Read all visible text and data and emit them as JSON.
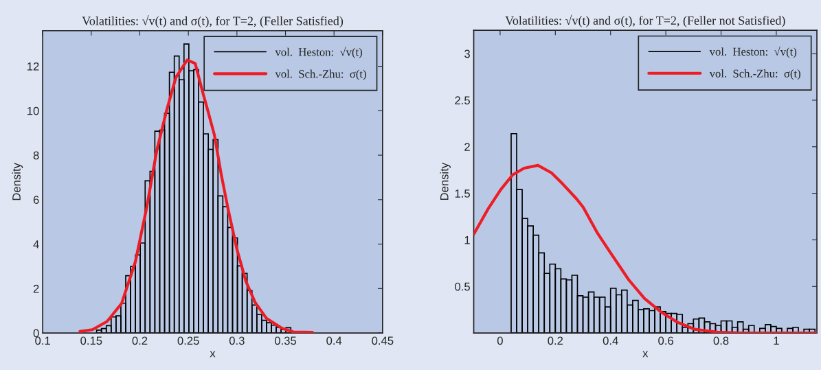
{
  "chart_data": [
    {
      "type": "histogram",
      "title": "Volatilities: √v(t) and σ(t), for T=2, (Feller Satisfied)",
      "xlabel": "x",
      "ylabel": "Density",
      "bins": [
        0.1405,
        0.1455,
        0.1505,
        0.1555,
        0.1605,
        0.1655,
        0.1705,
        0.1755,
        0.1805,
        0.1855,
        0.1905,
        0.1955,
        0.2005,
        0.2055,
        0.2105,
        0.2155,
        0.2205,
        0.2255,
        0.2305,
        0.2355,
        0.2405,
        0.2455,
        0.2505,
        0.2555,
        0.2605,
        0.2655,
        0.2705,
        0.2755,
        0.2805,
        0.2855,
        0.2905,
        0.2955,
        0.3005,
        0.3055,
        0.3105,
        0.3155,
        0.3205,
        0.3255,
        0.3305,
        0.3355,
        0.3405,
        0.3455,
        0.3505,
        0.3555,
        0.3605,
        0.3655,
        0.3705
      ],
      "series": [
        {
          "name": "vol.  Heston:  √v(t)",
          "color": "#000000",
          "values": [
            null,
            null,
            null,
            0.13,
            0.2,
            0.33,
            0.72,
            0.77,
            1.34,
            2.58,
            2.99,
            3.51,
            4.05,
            6.85,
            7.27,
            9.08,
            9.13,
            9.88,
            11.73,
            12.46,
            11.4,
            13.0,
            11.8,
            11.85,
            10.39,
            8.96,
            8.26,
            8.7,
            6.17,
            5.68,
            4.75,
            4.28,
            3.02,
            2.68,
            1.91,
            1.26,
            0.83,
            0.57,
            0.46,
            0.35,
            0.25,
            0.15,
            0.24,
            null,
            null,
            0.03
          ]
        },
        {
          "name": "vol.  Sch.-Zhu:  σ(t)",
          "type": "line",
          "color": "#ee1c25",
          "x": [
            0.1384,
            0.1512,
            0.1663,
            0.1814,
            0.1954,
            0.207,
            0.2174,
            0.2279,
            0.2372,
            0.2488,
            0.257,
            0.2651,
            0.2697,
            0.2767,
            0.2837,
            0.2907,
            0.3,
            0.3093,
            0.3186,
            0.3302,
            0.3464,
            0.3581,
            0.3778
          ],
          "values": [
            0.07,
            0.15,
            0.52,
            1.34,
            3.2,
            5.62,
            8.2,
            10.06,
            11.5,
            12.28,
            12.13,
            10.78,
            10.06,
            8.93,
            7.17,
            5.62,
            3.77,
            2.32,
            1.39,
            0.67,
            0.21,
            0.05,
            0.03
          ]
        }
      ],
      "xlim": [
        0.1,
        0.45
      ],
      "ylim": [
        0,
        13.6
      ],
      "xticks": [
        0.1,
        0.15,
        0.2,
        0.25,
        0.3,
        0.35,
        0.4,
        0.45
      ],
      "yticks": [
        0,
        2,
        4,
        6,
        8,
        10,
        12
      ],
      "legend": "top right",
      "grid": false
    },
    {
      "type": "histogram",
      "title": "Volatilities: √v(t) and σ(t), for T=2, (Feller not Satisfied)",
      "xlabel": "x",
      "ylabel": "Density",
      "bins": [
        0,
        0.02,
        0.04,
        0.06,
        0.08,
        0.1,
        0.12,
        0.14,
        0.16,
        0.18,
        0.2,
        0.22,
        0.24,
        0.26,
        0.28,
        0.3,
        0.32,
        0.34,
        0.36,
        0.38,
        0.4,
        0.42,
        0.44,
        0.46,
        0.48,
        0.5,
        0.52,
        0.54,
        0.56,
        0.58,
        0.6,
        0.62,
        0.64,
        0.66,
        0.68,
        0.7,
        0.72,
        0.74,
        0.76,
        0.78,
        0.8,
        0.82,
        0.84,
        0.86,
        0.88,
        0.9,
        0.92,
        0.94,
        0.96,
        0.98,
        1.0,
        1.02,
        1.04,
        1.06,
        1.08,
        1.1,
        1.12,
        1.14
      ],
      "series": [
        {
          "name": "vol.  Heston:  √v(t)",
          "color": "#000000",
          "values": [
            null,
            null,
            2.14,
            1.54,
            1.23,
            1.15,
            1.05,
            0.86,
            0.64,
            0.74,
            0.69,
            0.58,
            0.57,
            0.62,
            0.4,
            0.385,
            0.44,
            0.385,
            0.385,
            0.28,
            0.48,
            0.41,
            0.46,
            0.3,
            0.35,
            0.25,
            0.26,
            0.24,
            0.28,
            0.23,
            0.21,
            0.21,
            0.2,
            0.06,
            0.1,
            0.15,
            0.16,
            0.12,
            0.1,
            0.08,
            0.13,
            0.13,
            0.06,
            0.12,
            0.04,
            0.08,
            0.01,
            0.05,
            0.09,
            0.07,
            0.05,
            null,
            0.05,
            0.06,
            null,
            0.04,
            0.04
          ]
        },
        {
          "name": "vol.  Sch.-Zhu:  σ(t)",
          "type": "line",
          "color": "#ee1c25",
          "x": [
            -0.0955,
            -0.044,
            0.0025,
            0.046,
            0.087,
            0.137,
            0.186,
            0.227,
            0.277,
            0.301,
            0.351,
            0.4,
            0.466,
            0.523,
            0.581,
            0.639,
            0.704,
            0.787,
            0.869,
            1.147
          ],
          "values": [
            1.06,
            1.33,
            1.54,
            1.7,
            1.77,
            1.8,
            1.72,
            1.6,
            1.44,
            1.35,
            1.08,
            0.86,
            0.57,
            0.37,
            0.23,
            0.12,
            0.04,
            0.01,
            0.0,
            0.0
          ]
        }
      ],
      "xlim": [
        -0.0955,
        1.147
      ],
      "ylim": [
        0,
        3.25
      ],
      "xticks": [
        0,
        0.2,
        0.4,
        0.6,
        0.8,
        1
      ],
      "yticks": [
        0.5,
        1,
        1.5,
        2,
        2.5,
        3
      ],
      "legend": "top right",
      "grid": false
    }
  ]
}
